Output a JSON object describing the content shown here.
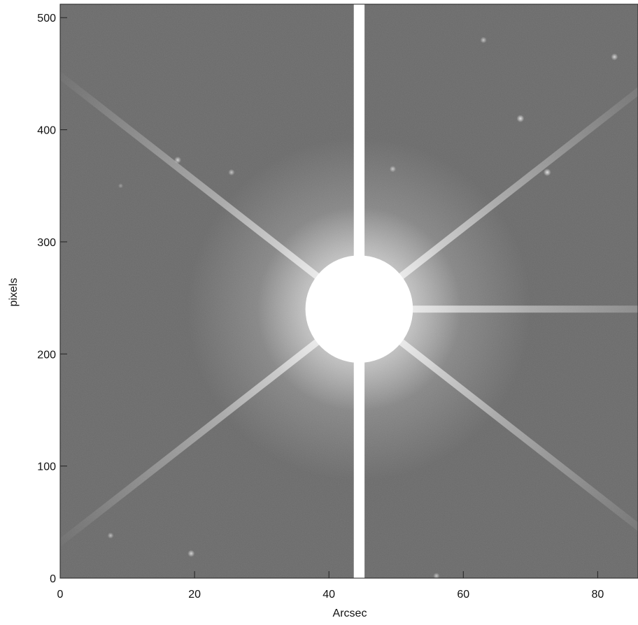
{
  "chart_data": {
    "type": "heatmap",
    "title": "",
    "xlabel": "Arcsec",
    "ylabel": "pixels",
    "xlim": [
      0,
      86
    ],
    "ylim": [
      0,
      512
    ],
    "x_ticks": [
      0,
      20,
      40,
      60,
      80
    ],
    "y_ticks": [
      0,
      100,
      200,
      300,
      400,
      500
    ],
    "grid": false,
    "colormap": "grayscale",
    "background_color": "#6a6a6a",
    "saturation_color": "#ffffff",
    "features": {
      "star_center": {
        "x": 44.5,
        "y": 240
      },
      "saturated_core_radius_arcsec": 8,
      "bleed_column": {
        "x_from": 43.7,
        "x_to": 45.3,
        "y_from": 0,
        "y_to": 512
      },
      "diffraction_spike_angles_deg": [
        0,
        38,
        142,
        218,
        322
      ],
      "faint_sources": [
        {
          "x": 7.5,
          "y": 38,
          "brightness": 0.35
        },
        {
          "x": 9,
          "y": 350,
          "brightness": 0.15
        },
        {
          "x": 19.5,
          "y": 22,
          "brightness": 0.5
        },
        {
          "x": 17.5,
          "y": 373,
          "brightness": 0.5
        },
        {
          "x": 25.5,
          "y": 362,
          "brightness": 0.4
        },
        {
          "x": 49.5,
          "y": 365,
          "brightness": 0.4
        },
        {
          "x": 63,
          "y": 480,
          "brightness": 0.4
        },
        {
          "x": 68.5,
          "y": 410,
          "brightness": 0.6
        },
        {
          "x": 72.5,
          "y": 362,
          "brightness": 0.6
        },
        {
          "x": 82.5,
          "y": 465,
          "brightness": 0.5
        },
        {
          "x": 56,
          "y": 2,
          "brightness": 0.4
        }
      ]
    }
  }
}
